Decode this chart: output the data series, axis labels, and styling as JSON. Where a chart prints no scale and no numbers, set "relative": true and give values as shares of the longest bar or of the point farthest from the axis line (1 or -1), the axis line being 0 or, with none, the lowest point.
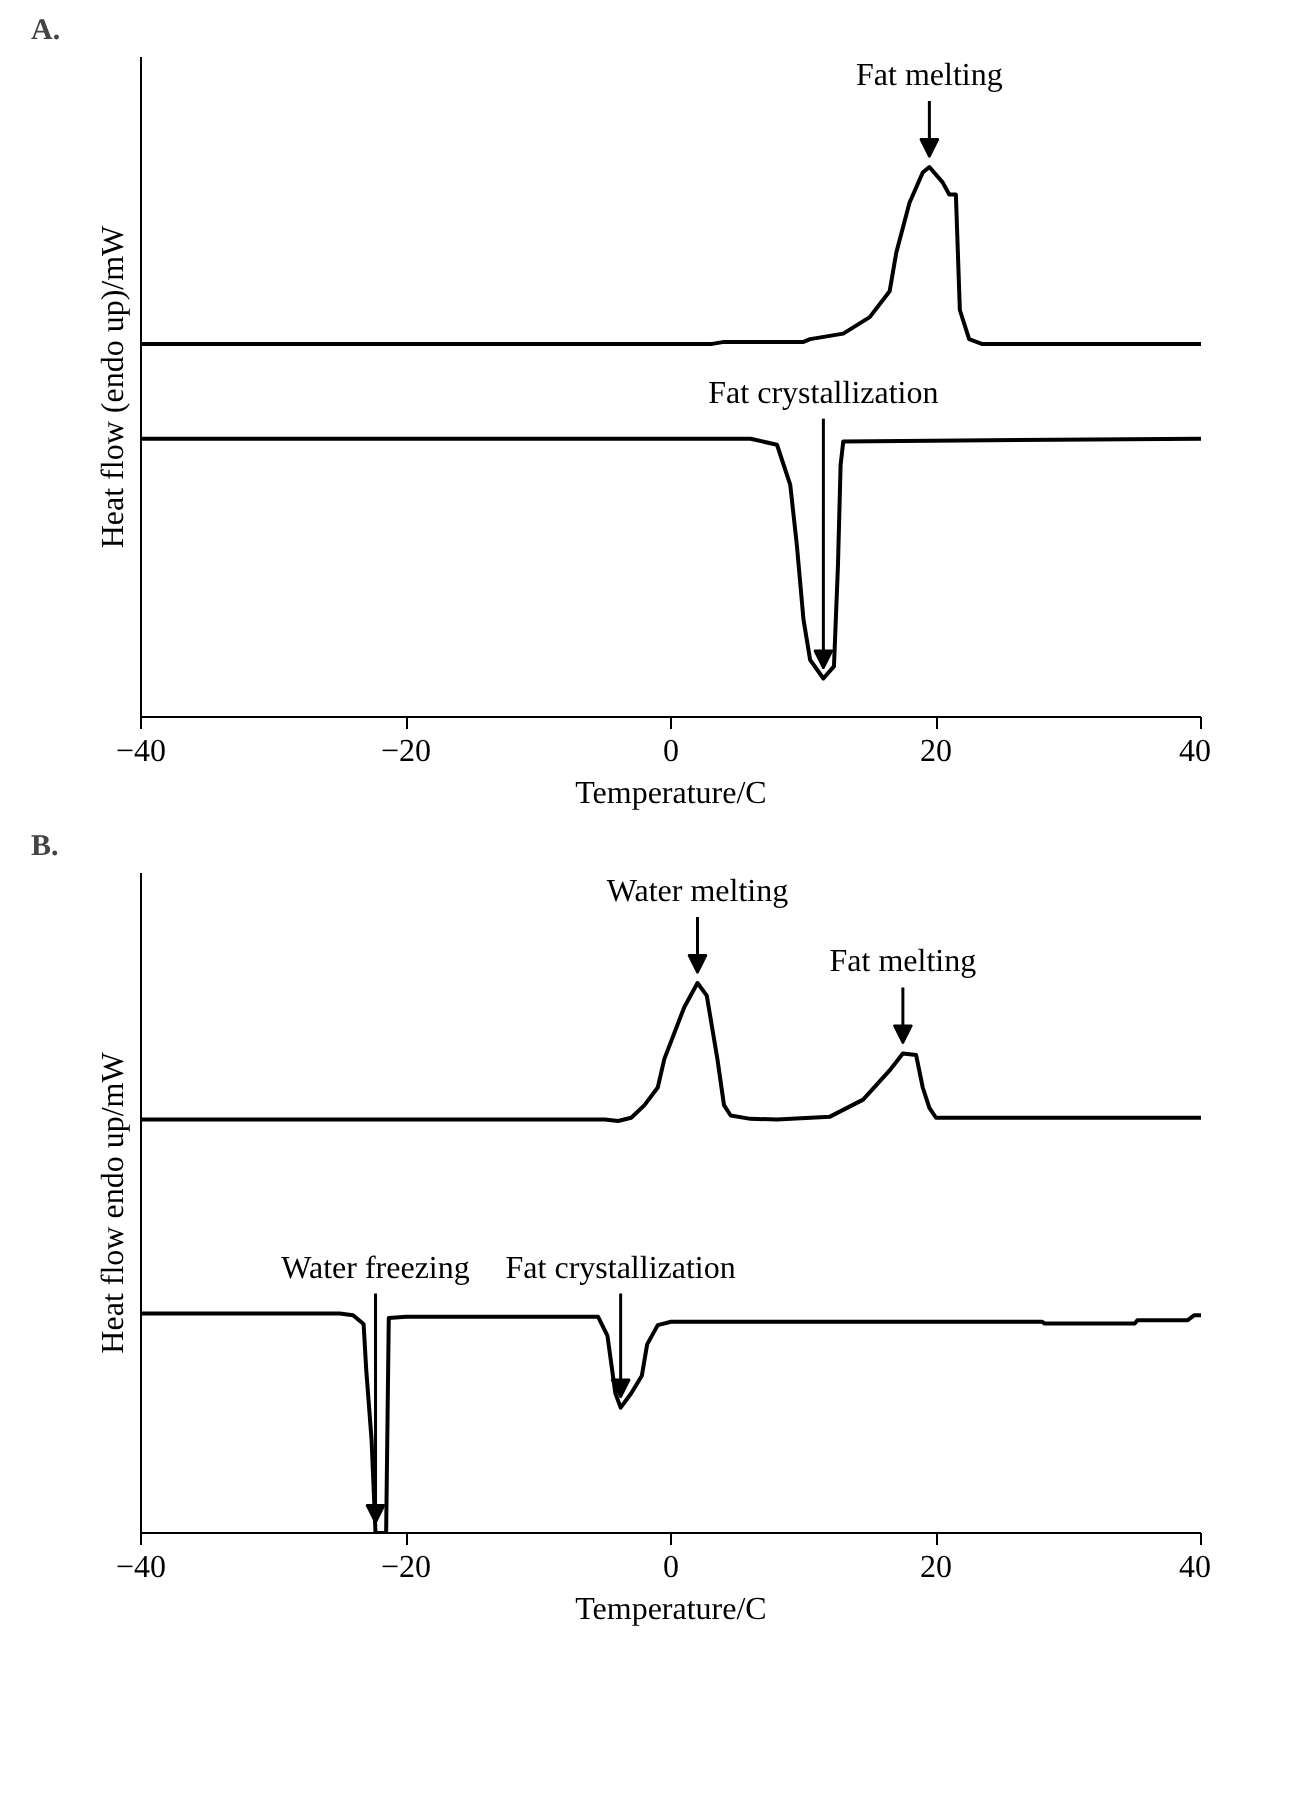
{
  "chart_data": [
    {
      "type": "line",
      "title": "A.",
      "xlabel": "Temperature/C",
      "ylabel": "Heat flow (endo up)/mW",
      "relative": true,
      "xlim": [
        -40,
        40
      ],
      "xticks": [
        -40,
        -20,
        0,
        20,
        40
      ],
      "grid": false,
      "marker": "none",
      "line_style": "solid",
      "series": [
        {
          "color": "#000000",
          "x": [
            -40,
            3,
            4,
            10,
            10.5,
            13,
            15,
            16.5,
            17,
            18,
            19,
            19.5,
            20.5,
            21,
            21.5,
            21.8,
            22.5,
            23.5,
            40
          ],
          "values": [
            0.678,
            0.678,
            0.682,
            0.682,
            0.687,
            0.697,
            0.727,
            0.774,
            0.844,
            0.935,
            0.99,
            1.0,
            0.972,
            0.95,
            0.95,
            0.74,
            0.687,
            0.678,
            0.678
          ]
        },
        {
          "color": "#000000",
          "x": [
            -40,
            6,
            8,
            9,
            9.5,
            10,
            10.5,
            11.5,
            12.3,
            12.6,
            12.8,
            13,
            40
          ],
          "values": [
            0.506,
            0.506,
            0.495,
            0.422,
            0.312,
            0.177,
            0.104,
            0.07,
            0.092,
            0.275,
            0.458,
            0.501,
            0.506
          ]
        }
      ],
      "annotations": [
        {
          "text": "Fat melting",
          "x": 19.5,
          "y": 1.0
        },
        {
          "text": "Fat crystallization",
          "x": 11.5,
          "y": 0.07
        }
      ]
    },
    {
      "type": "line",
      "title": "B.",
      "xlabel": "Temperature/C",
      "ylabel": "Heat flow endo up/mW",
      "relative": true,
      "xlim": [
        -40,
        40
      ],
      "xticks": [
        -40,
        -20,
        0,
        20,
        40
      ],
      "grid": false,
      "marker": "none",
      "line_style": "solid",
      "series": [
        {
          "color": "#000000",
          "x": [
            -40,
            -5,
            -4,
            -3,
            -2,
            -1,
            -0.5,
            1,
            2,
            2.7,
            3.5,
            4,
            4.5,
            6,
            8,
            12,
            14.5,
            16.5,
            17.5,
            18.5,
            19,
            19.5,
            20,
            40
          ],
          "values": [
            0.752,
            0.752,
            0.749,
            0.755,
            0.778,
            0.81,
            0.862,
            0.956,
            1.0,
            0.977,
            0.862,
            0.778,
            0.759,
            0.753,
            0.752,
            0.757,
            0.788,
            0.841,
            0.872,
            0.869,
            0.81,
            0.773,
            0.755,
            0.755
          ]
        },
        {
          "color": "#000000",
          "x": [
            -40,
            -25,
            -24,
            -23.2,
            -23,
            -22.6,
            -22.3,
            -21.5,
            -21.3,
            -20,
            -5.5,
            -4.8,
            -4.2,
            -3.8,
            -3,
            -2.2,
            -1.8,
            -1,
            0,
            28,
            28.2,
            35,
            35.2,
            39,
            39.5,
            40
          ],
          "values": [
            0.399,
            0.399,
            0.396,
            0.38,
            0.296,
            0.17,
            0,
            0,
            0.391,
            0.393,
            0.393,
            0.359,
            0.254,
            0.228,
            0.254,
            0.286,
            0.343,
            0.378,
            0.384,
            0.384,
            0.381,
            0.381,
            0.387,
            0.387,
            0.396,
            0.396
          ]
        }
      ],
      "annotations": [
        {
          "text": "Fat melting",
          "x": 17.5,
          "y": 0.872
        },
        {
          "text": "Water melting",
          "x": 2,
          "y": 1.0
        },
        {
          "text": "Water freezing",
          "x": -22.3,
          "y": 0
        },
        {
          "text": "Fat crystallization",
          "x": -3.8,
          "y": 0.228
        }
      ]
    }
  ]
}
